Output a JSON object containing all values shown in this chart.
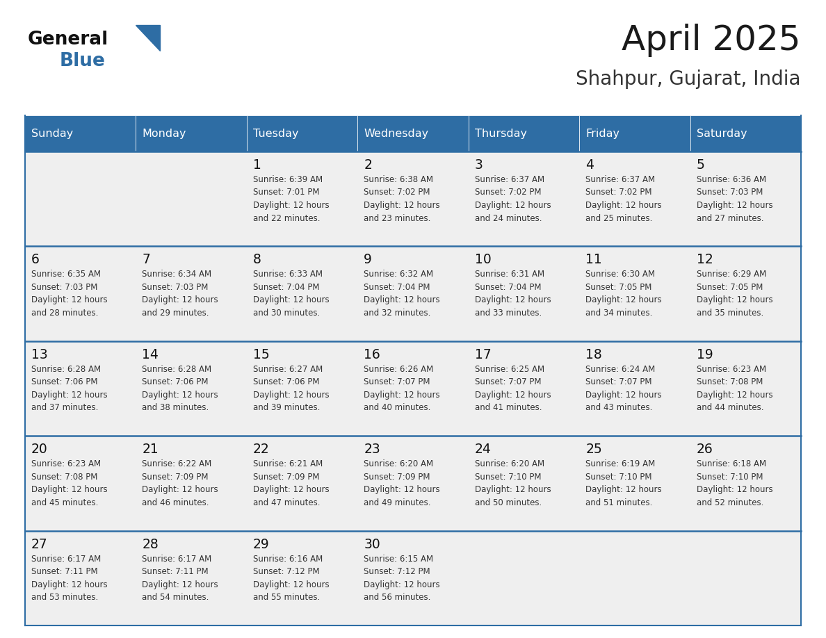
{
  "title": "April 2025",
  "subtitle": "Shahpur, Gujarat, India",
  "days_of_week": [
    "Sunday",
    "Monday",
    "Tuesday",
    "Wednesday",
    "Thursday",
    "Friday",
    "Saturday"
  ],
  "header_bg": "#2E6DA4",
  "header_text": "#FFFFFF",
  "cell_bg": "#EFEFEF",
  "cell_border_color": "#2E6DA4",
  "day_number_color": "#111111",
  "cell_text_color": "#333333",
  "title_color": "#1a1a1a",
  "subtitle_color": "#333333",
  "logo_general_color": "#111111",
  "logo_blue_color": "#2E6DA4",
  "calendar_data": [
    [
      {
        "day": null,
        "info": ""
      },
      {
        "day": null,
        "info": ""
      },
      {
        "day": 1,
        "info": "Sunrise: 6:39 AM\nSunset: 7:01 PM\nDaylight: 12 hours\nand 22 minutes."
      },
      {
        "day": 2,
        "info": "Sunrise: 6:38 AM\nSunset: 7:02 PM\nDaylight: 12 hours\nand 23 minutes."
      },
      {
        "day": 3,
        "info": "Sunrise: 6:37 AM\nSunset: 7:02 PM\nDaylight: 12 hours\nand 24 minutes."
      },
      {
        "day": 4,
        "info": "Sunrise: 6:37 AM\nSunset: 7:02 PM\nDaylight: 12 hours\nand 25 minutes."
      },
      {
        "day": 5,
        "info": "Sunrise: 6:36 AM\nSunset: 7:03 PM\nDaylight: 12 hours\nand 27 minutes."
      }
    ],
    [
      {
        "day": 6,
        "info": "Sunrise: 6:35 AM\nSunset: 7:03 PM\nDaylight: 12 hours\nand 28 minutes."
      },
      {
        "day": 7,
        "info": "Sunrise: 6:34 AM\nSunset: 7:03 PM\nDaylight: 12 hours\nand 29 minutes."
      },
      {
        "day": 8,
        "info": "Sunrise: 6:33 AM\nSunset: 7:04 PM\nDaylight: 12 hours\nand 30 minutes."
      },
      {
        "day": 9,
        "info": "Sunrise: 6:32 AM\nSunset: 7:04 PM\nDaylight: 12 hours\nand 32 minutes."
      },
      {
        "day": 10,
        "info": "Sunrise: 6:31 AM\nSunset: 7:04 PM\nDaylight: 12 hours\nand 33 minutes."
      },
      {
        "day": 11,
        "info": "Sunrise: 6:30 AM\nSunset: 7:05 PM\nDaylight: 12 hours\nand 34 minutes."
      },
      {
        "day": 12,
        "info": "Sunrise: 6:29 AM\nSunset: 7:05 PM\nDaylight: 12 hours\nand 35 minutes."
      }
    ],
    [
      {
        "day": 13,
        "info": "Sunrise: 6:28 AM\nSunset: 7:06 PM\nDaylight: 12 hours\nand 37 minutes."
      },
      {
        "day": 14,
        "info": "Sunrise: 6:28 AM\nSunset: 7:06 PM\nDaylight: 12 hours\nand 38 minutes."
      },
      {
        "day": 15,
        "info": "Sunrise: 6:27 AM\nSunset: 7:06 PM\nDaylight: 12 hours\nand 39 minutes."
      },
      {
        "day": 16,
        "info": "Sunrise: 6:26 AM\nSunset: 7:07 PM\nDaylight: 12 hours\nand 40 minutes."
      },
      {
        "day": 17,
        "info": "Sunrise: 6:25 AM\nSunset: 7:07 PM\nDaylight: 12 hours\nand 41 minutes."
      },
      {
        "day": 18,
        "info": "Sunrise: 6:24 AM\nSunset: 7:07 PM\nDaylight: 12 hours\nand 43 minutes."
      },
      {
        "day": 19,
        "info": "Sunrise: 6:23 AM\nSunset: 7:08 PM\nDaylight: 12 hours\nand 44 minutes."
      }
    ],
    [
      {
        "day": 20,
        "info": "Sunrise: 6:23 AM\nSunset: 7:08 PM\nDaylight: 12 hours\nand 45 minutes."
      },
      {
        "day": 21,
        "info": "Sunrise: 6:22 AM\nSunset: 7:09 PM\nDaylight: 12 hours\nand 46 minutes."
      },
      {
        "day": 22,
        "info": "Sunrise: 6:21 AM\nSunset: 7:09 PM\nDaylight: 12 hours\nand 47 minutes."
      },
      {
        "day": 23,
        "info": "Sunrise: 6:20 AM\nSunset: 7:09 PM\nDaylight: 12 hours\nand 49 minutes."
      },
      {
        "day": 24,
        "info": "Sunrise: 6:20 AM\nSunset: 7:10 PM\nDaylight: 12 hours\nand 50 minutes."
      },
      {
        "day": 25,
        "info": "Sunrise: 6:19 AM\nSunset: 7:10 PM\nDaylight: 12 hours\nand 51 minutes."
      },
      {
        "day": 26,
        "info": "Sunrise: 6:18 AM\nSunset: 7:10 PM\nDaylight: 12 hours\nand 52 minutes."
      }
    ],
    [
      {
        "day": 27,
        "info": "Sunrise: 6:17 AM\nSunset: 7:11 PM\nDaylight: 12 hours\nand 53 minutes."
      },
      {
        "day": 28,
        "info": "Sunrise: 6:17 AM\nSunset: 7:11 PM\nDaylight: 12 hours\nand 54 minutes."
      },
      {
        "day": 29,
        "info": "Sunrise: 6:16 AM\nSunset: 7:12 PM\nDaylight: 12 hours\nand 55 minutes."
      },
      {
        "day": 30,
        "info": "Sunrise: 6:15 AM\nSunset: 7:12 PM\nDaylight: 12 hours\nand 56 minutes."
      },
      {
        "day": null,
        "info": ""
      },
      {
        "day": null,
        "info": ""
      },
      {
        "day": null,
        "info": ""
      }
    ]
  ]
}
